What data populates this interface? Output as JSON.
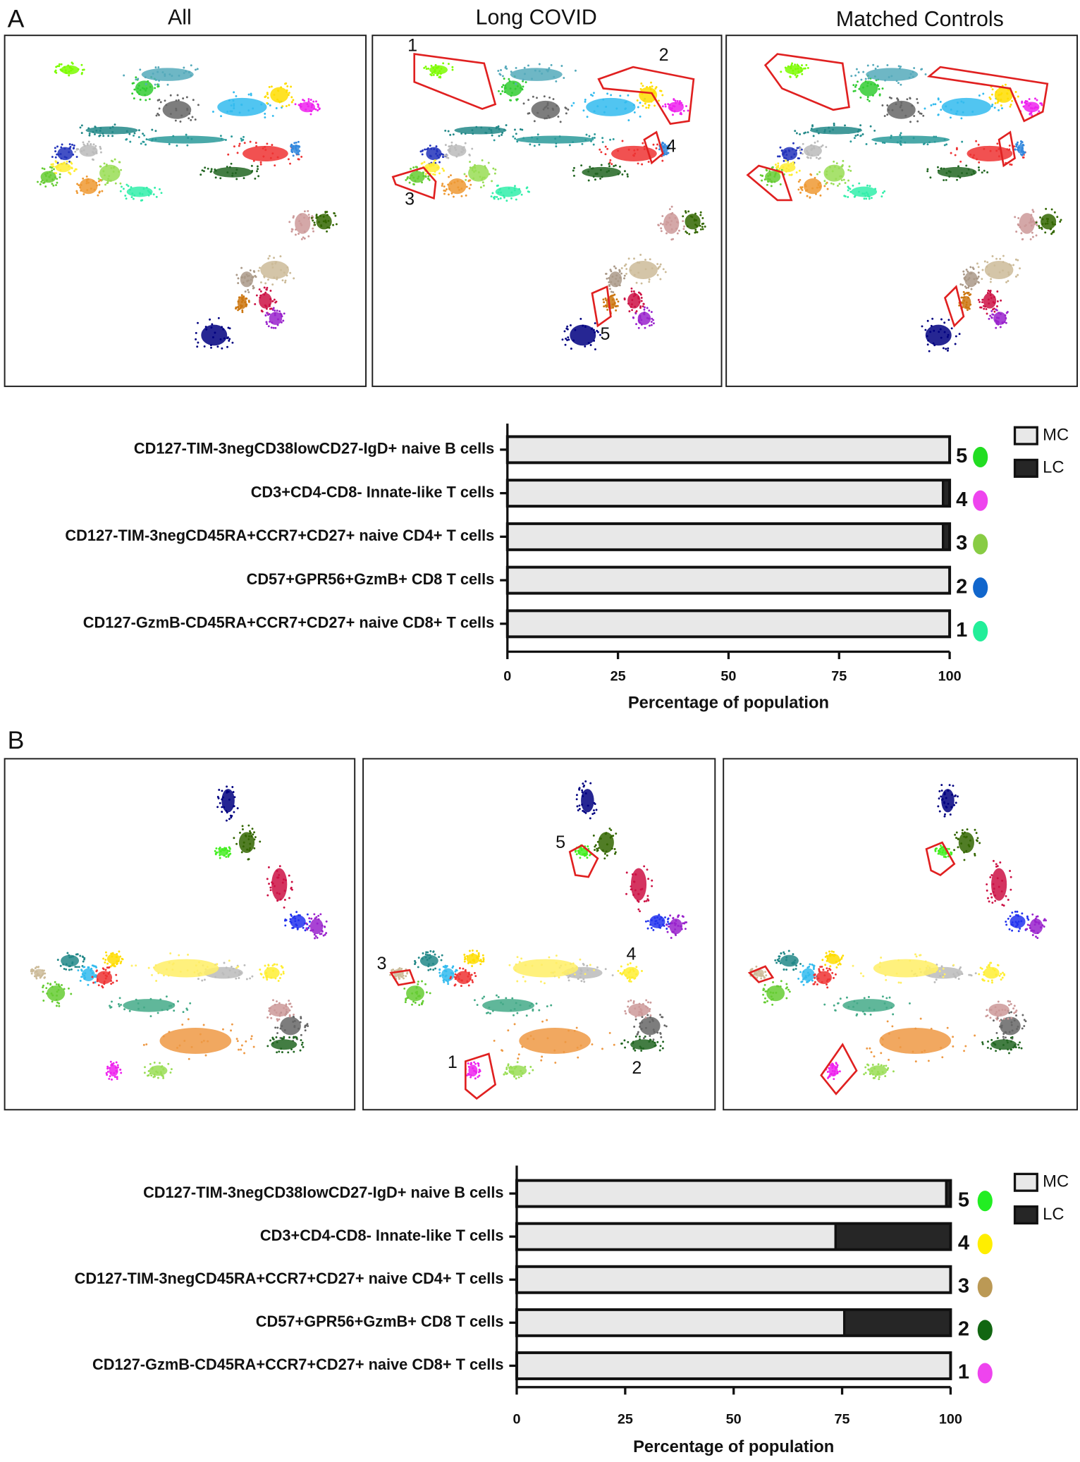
{
  "panels": [
    {
      "letter": "A",
      "umap_titles": [
        "All",
        "Long COVID",
        "Matched Controls"
      ],
      "region_labels": [
        "1",
        "2",
        "3",
        "4",
        "5"
      ]
    },
    {
      "letter": "B",
      "region_labels": [
        "1",
        "2",
        "3",
        "4",
        "5"
      ]
    }
  ],
  "chart_data": [
    {
      "type": "bar",
      "orientation": "horizontal",
      "stacked": true,
      "categories": [
        "CD127-GzmB-CD45RA+CCR7+CD27+  naive CD8+ T cells",
        "CD57+GPR56+GzmB+ CD8 T cells",
        "CD127-TIM-3negCD45RA+CCR7+CD27+  naive CD4+ T cells",
        "CD3+CD4-CD8- Innate-like T cells",
        "CD127-TIM-3negCD38lowCD27-IgD+ naive B cells"
      ],
      "series": [
        {
          "name": "MC",
          "color": "#e8e8e8",
          "values": [
            100,
            100,
            98.5,
            98.5,
            100
          ]
        },
        {
          "name": "LC",
          "color": "#262626",
          "values": [
            0,
            0,
            1.5,
            1.5,
            0
          ]
        }
      ],
      "row_labels": [
        "1",
        "2",
        "3",
        "4",
        "5"
      ],
      "row_label_colors": [
        "#22ee99",
        "#1166cc",
        "#88cc44",
        "#ee44ee",
        "#22dd22"
      ],
      "xlim": [
        0,
        100
      ],
      "xticks": [
        0,
        25,
        50,
        75,
        100
      ],
      "xlabel": "Percentage of population",
      "legend": "right"
    },
    {
      "type": "bar",
      "orientation": "horizontal",
      "stacked": true,
      "categories": [
        "CD127-GzmB-CD45RA+CCR7+CD27+  naive CD8+ T cells",
        "CD57+GPR56+GzmB+ CD8 T cells",
        "CD127-TIM-3negCD45RA+CCR7+CD27+  naive CD4+ T cells",
        "CD3+CD4-CD8- Innate-like T cells",
        "CD127-TIM-3negCD38lowCD27-IgD+ naive B cells"
      ],
      "series": [
        {
          "name": "MC",
          "color": "#e8e8e8",
          "values": [
            100,
            75.5,
            100,
            73.5,
            99
          ]
        },
        {
          "name": "LC",
          "color": "#262626",
          "values": [
            0,
            24.5,
            0,
            26.5,
            1
          ]
        }
      ],
      "row_labels": [
        "1",
        "2",
        "3",
        "4",
        "5"
      ],
      "row_label_colors": [
        "#ee44ee",
        "#116611",
        "#bb9955",
        "#ffee00",
        "#22ee22"
      ],
      "xlim": [
        0,
        100
      ],
      "xticks": [
        0,
        25,
        50,
        75,
        100
      ],
      "xlabel": "Percentage of population",
      "legend": "right"
    }
  ]
}
